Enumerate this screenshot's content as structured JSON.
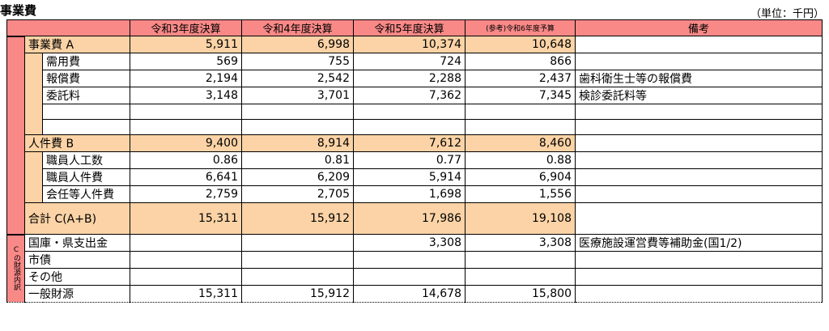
{
  "title": "事業費",
  "unit": "（単位：千円）",
  "headers": [
    "令和3年度決算",
    "令和4年度決算",
    "令和5年度決算",
    "(参考)令和6年度予算",
    "備考"
  ],
  "sections": [
    {
      "label": "事業費 A",
      "values": [
        "5,911",
        "6,998",
        "10,374",
        "10,648"
      ],
      "note": "",
      "rows": [
        {
          "label": "需用費",
          "values": [
            "569",
            "755",
            "724",
            "866"
          ],
          "note": ""
        },
        {
          "label": "報償費",
          "values": [
            "2,194",
            "2,542",
            "2,288",
            "2,437"
          ],
          "note": "歯科衛生士等の報償費"
        },
        {
          "label": "委託料",
          "values": [
            "3,148",
            "3,701",
            "7,362",
            "7,345"
          ],
          "note": "検診委託料等"
        },
        {
          "label": "",
          "values": [
            "",
            "",
            "",
            ""
          ],
          "note": ""
        },
        {
          "label": "",
          "values": [
            "",
            "",
            "",
            ""
          ],
          "note": ""
        }
      ]
    },
    {
      "label": "人件費 B",
      "values": [
        "9,400",
        "8,914",
        "7,612",
        "8,460"
      ],
      "note": "",
      "rows": [
        {
          "label": "職員人工数",
          "values": [
            "0.86",
            "0.81",
            "0.77",
            "0.88"
          ],
          "note": ""
        },
        {
          "label": "職員人件費",
          "values": [
            "6,641",
            "6,209",
            "5,914",
            "6,904"
          ],
          "note": ""
        },
        {
          "label": "会任等人件費",
          "values": [
            "2,759",
            "2,705",
            "1,698",
            "1,556"
          ],
          "note": ""
        }
      ]
    }
  ],
  "total": {
    "label": "合計 C(A+B)",
    "values": [
      "15,311",
      "15,912",
      "17,986",
      "19,108"
    ],
    "note": ""
  },
  "funding": {
    "label": "Cの財源内訳",
    "rows": [
      {
        "label": "国庫・県支出金",
        "values": [
          "",
          "",
          "3,308",
          "3,308"
        ],
        "note": "医療施設運営費等補助金(国1/2)"
      },
      {
        "label": "市債",
        "values": [
          "",
          "",
          "",
          ""
        ],
        "note": ""
      },
      {
        "label": "その他",
        "values": [
          "",
          "",
          "",
          ""
        ],
        "note": ""
      },
      {
        "label": "一般財源",
        "values": [
          "15,311",
          "15,912",
          "14,678",
          "15,800"
        ],
        "note": ""
      }
    ]
  }
}
